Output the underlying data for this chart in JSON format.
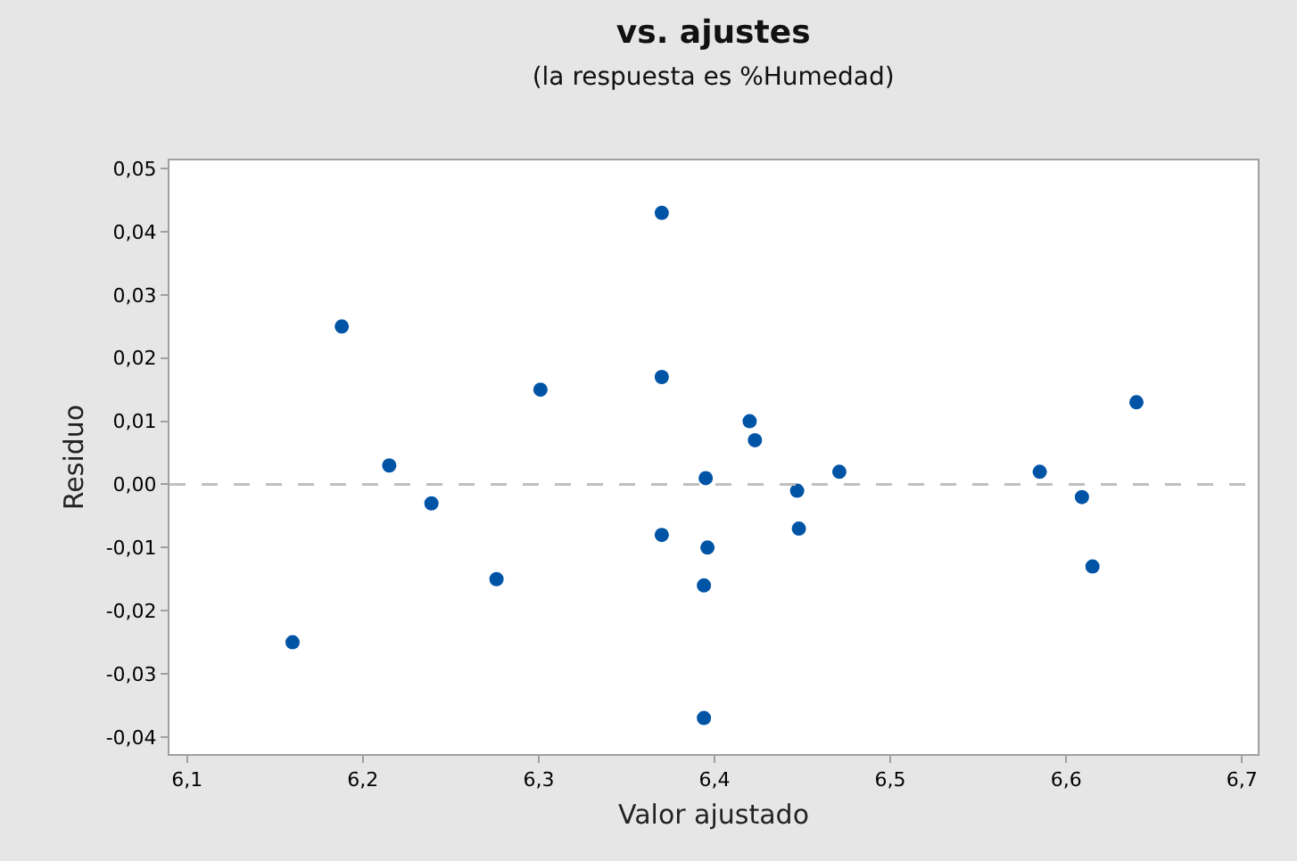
{
  "chart_data": {
    "type": "scatter",
    "title": "vs. ajustes",
    "subtitle": "(la respuesta es %Humedad)",
    "xlabel": "Valor ajustado",
    "ylabel": "Residuo",
    "x": [
      6.16,
      6.188,
      6.215,
      6.239,
      6.276,
      6.301,
      6.37,
      6.37,
      6.37,
      6.395,
      6.396,
      6.394,
      6.394,
      6.42,
      6.423,
      6.447,
      6.448,
      6.471,
      6.585,
      6.609,
      6.615,
      6.64
    ],
    "series": [
      {
        "color": "#0054a6",
        "values": [
          -0.025,
          0.025,
          0.003,
          -0.003,
          -0.015,
          0.015,
          0.043,
          0.017,
          -0.008,
          0.001,
          -0.01,
          -0.016,
          -0.037,
          0.01,
          0.007,
          -0.001,
          -0.007,
          0.002,
          0.002,
          -0.002,
          -0.013,
          0.013
        ]
      }
    ],
    "marker": "circle",
    "grid": false,
    "xlim": [
      6.09,
      6.709
    ],
    "ylim": [
      -0.0427,
      0.0513
    ],
    "xticks": [
      {
        "value": 6.1,
        "label": "6,1"
      },
      {
        "value": 6.2,
        "label": "6,2"
      },
      {
        "value": 6.3,
        "label": "6,3"
      },
      {
        "value": 6.4,
        "label": "6,4"
      },
      {
        "value": 6.5,
        "label": "6,5"
      },
      {
        "value": 6.6,
        "label": "6,6"
      },
      {
        "value": 6.7,
        "label": "6,7"
      }
    ],
    "yticks": [
      {
        "value": -0.04,
        "label": "-0,04"
      },
      {
        "value": -0.03,
        "label": "-0,03"
      },
      {
        "value": -0.02,
        "label": "-0,02"
      },
      {
        "value": -0.01,
        "label": "-0,01"
      },
      {
        "value": 0,
        "label": "0,00"
      },
      {
        "value": 0.01,
        "label": "0,01"
      },
      {
        "value": 0.02,
        "label": "0,02"
      },
      {
        "value": 0.03,
        "label": "0,03"
      },
      {
        "value": 0.04,
        "label": "0,04"
      },
      {
        "value": 0.05,
        "label": "0,05"
      }
    ],
    "ref_lines": [
      {
        "axis": "y",
        "value": 0,
        "color": "#bfbfbf",
        "line_style": "dashed"
      }
    ]
  }
}
